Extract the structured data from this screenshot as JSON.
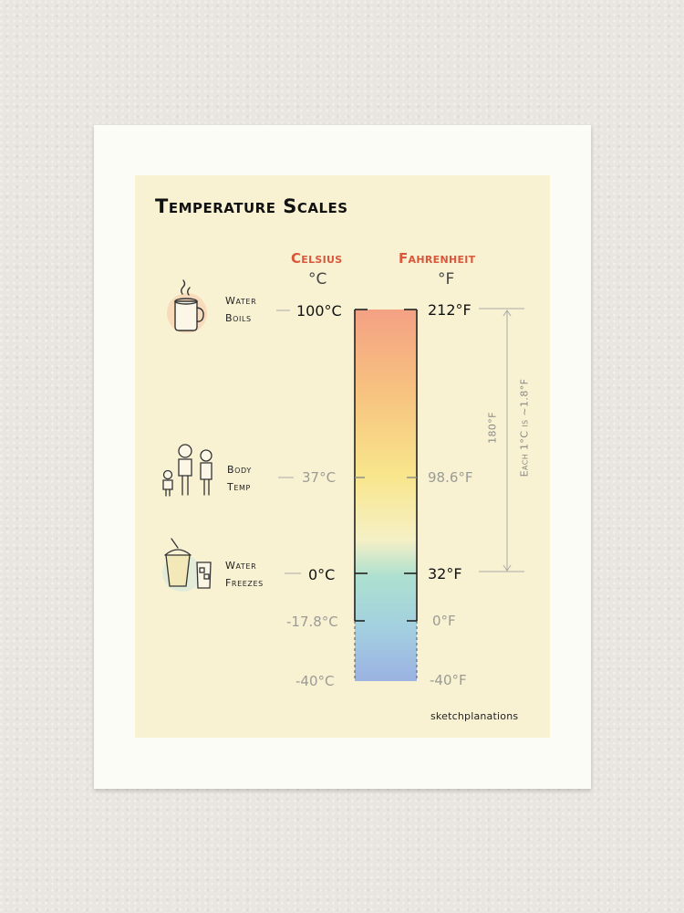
{
  "title": "Temperature Scales",
  "headers": {
    "celsius": "Celsius",
    "celsius_unit": "°C",
    "fahrenheit": "Fahrenheit",
    "fahrenheit_unit": "°F"
  },
  "marks": [
    {
      "celsius": "100°C",
      "fahrenheit": "212°F",
      "label_line1": "Water",
      "label_line2": "Boils",
      "icon": "mug-icon",
      "emphasis": "dark"
    },
    {
      "celsius": "37°C",
      "fahrenheit": "98.6°F",
      "label_line1": "Body",
      "label_line2": "Temp",
      "icon": "family-icon",
      "emphasis": "gray"
    },
    {
      "celsius": "0°C",
      "fahrenheit": "32°F",
      "label_line1": "Water",
      "label_line2": "Freezes",
      "icon": "iced-drinks-icon",
      "emphasis": "dark"
    },
    {
      "celsius": "-17.8°C",
      "fahrenheit": "0°F",
      "emphasis": "gray"
    },
    {
      "celsius": "-40°C",
      "fahrenheit": "-40°F",
      "emphasis": "gray"
    }
  ],
  "range_note": {
    "span": "180°F",
    "ratio": "Each 1°C is ~1.8°F"
  },
  "signature": "sketchplanations",
  "colors": {
    "hot": "#f4a184",
    "warm": "#f8e48a",
    "cool": "#a9dcd3",
    "cold": "#9fb7e0",
    "accent": "#d9573a"
  }
}
